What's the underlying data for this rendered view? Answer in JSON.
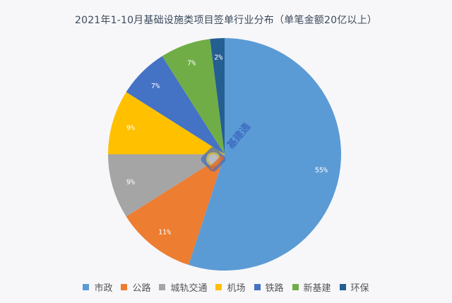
{
  "title": "2021年1-10月基础设施类项目签单行业分布（单笔金额20亿以上）",
  "chart_data": {
    "type": "pie",
    "title": "2021年1-10月基础设施类项目签单行业分布（单笔金额20亿以上）",
    "categories": [
      "市政",
      "公路",
      "城轨交通",
      "机场",
      "铁路",
      "新基建",
      "环保"
    ],
    "values": [
      55,
      11,
      9,
      9,
      7,
      7,
      2
    ],
    "labels": [
      "55%",
      "11%",
      "9%",
      "9%",
      "7%",
      "7%",
      "2%"
    ],
    "colors": [
      "#5b9bd5",
      "#ed7d31",
      "#a5a5a5",
      "#ffc000",
      "#4472c4",
      "#70ad47",
      "#255e91"
    ],
    "legend_position": "bottom",
    "start_angle": "12 o'clock, clockwise"
  },
  "legend": [
    {
      "label": "市政",
      "color": "#5b9bd5"
    },
    {
      "label": "公路",
      "color": "#ed7d31"
    },
    {
      "label": "城轨交通",
      "color": "#a5a5a5"
    },
    {
      "label": "机场",
      "color": "#ffc000"
    },
    {
      "label": "铁路",
      "color": "#4472c4"
    },
    {
      "label": "新基建",
      "color": "#70ad47"
    },
    {
      "label": "环保",
      "color": "#255e91"
    }
  ],
  "watermark": "基建通"
}
